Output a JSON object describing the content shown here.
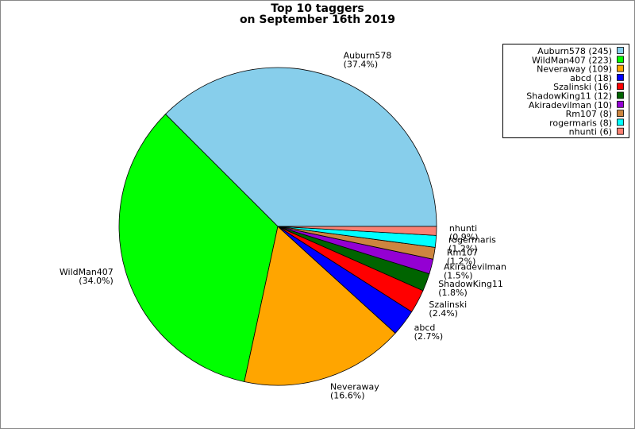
{
  "chart_data": {
    "type": "pie",
    "title": "Top 10 taggers",
    "subtitle": "on September 16th 2019",
    "categories": [
      "Auburn578",
      "WildMan407",
      "Neveraway",
      "abcd",
      "Szalinski",
      "ShadowKing11",
      "Akiradevilman",
      "Rm107",
      "rogermaris",
      "nhunti"
    ],
    "values": [
      37.4,
      34.0,
      16.6,
      2.7,
      2.4,
      1.8,
      1.5,
      1.2,
      1.2,
      0.9
    ],
    "value_labels": [
      "(37.4%)",
      "(34.0%)",
      "(16.6%)",
      "(2.7%)",
      "(2.4%)",
      "(1.8%)",
      "(1.5%)",
      "(1.2%)",
      "(1.2%)",
      "(0.9%)"
    ],
    "legend_labels": [
      "Auburn578 (245)",
      "WildMan407 (223)",
      "Neveraway (109)",
      "abcd (18)",
      "Szalinski (16)",
      "ShadowKing11 (12)",
      "Akiradevilman (10)",
      "Rm107 (8)",
      "rogermaris (8)",
      "nhunti (6)"
    ],
    "colors": [
      "#87ceeb",
      "#00ff00",
      "#ffa500",
      "#0000ff",
      "#ff0000",
      "#006400",
      "#9400d3",
      "#cd853f",
      "#00ffff",
      "#fa8072"
    ],
    "legend": "top-right"
  }
}
